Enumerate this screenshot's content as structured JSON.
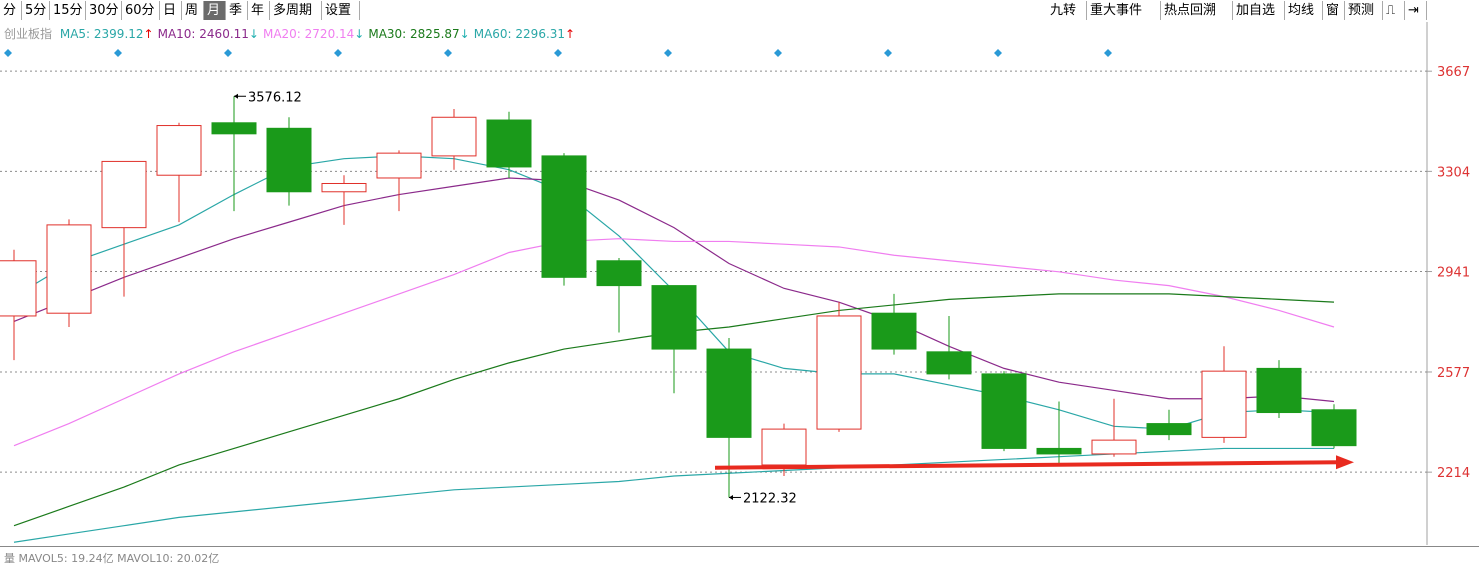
{
  "toolbar": {
    "left": [
      "分",
      "5分",
      "15分",
      "30分",
      "60分",
      "日",
      "周",
      "月",
      "季",
      "年",
      "多周期",
      "设置"
    ],
    "active": "月",
    "right": [
      "九转",
      "重大事件",
      "热点回溯",
      "加自选",
      "均线",
      "窗",
      "预测"
    ],
    "right_icons": [
      "restore-icon",
      "pin-right-icon"
    ]
  },
  "legend": {
    "name": "创业板指",
    "ma": [
      {
        "label": "MA5: 2399.12",
        "arrow": "↑",
        "color": "#2aa7a7",
        "arrow_color": "#e60000"
      },
      {
        "label": "MA10: 2460.11",
        "arrow": "↓",
        "color": "#8b2a8b",
        "arrow_color": "#22b0b0"
      },
      {
        "label": "MA20: 2720.14",
        "arrow": "↓",
        "color": "#f07ef0",
        "arrow_color": "#22b0b0"
      },
      {
        "label": "MA30: 2825.87",
        "arrow": "↓",
        "color": "#1b7a1b",
        "arrow_color": "#22b0b0"
      },
      {
        "label": "MA60: 2296.31",
        "arrow": "↑",
        "color": "#2aa7a7",
        "arrow_color": "#e60000"
      }
    ]
  },
  "vol_legend": "量 MAVOL5: 19.24亿 MAVOL10: 20.02亿",
  "chart_data": {
    "type": "candlestick",
    "y_ticks": [
      3667,
      3304,
      2941,
      2577,
      2214
    ],
    "ylim": [
      1950,
      3780
    ],
    "grid": "horizontal dashed",
    "candles": [
      {
        "o": 2780,
        "c": 2980,
        "h": 3020,
        "l": 2620
      },
      {
        "o": 2790,
        "c": 3110,
        "h": 3130,
        "l": 2740
      },
      {
        "o": 3100,
        "c": 3340,
        "h": 3340,
        "l": 2850
      },
      {
        "o": 3290,
        "c": 3470,
        "h": 3480,
        "l": 3120
      },
      {
        "o": 3480,
        "c": 3440,
        "h": 3576,
        "l": 3160
      },
      {
        "o": 3460,
        "c": 3230,
        "h": 3500,
        "l": 3180
      },
      {
        "o": 3230,
        "c": 3260,
        "h": 3290,
        "l": 3110
      },
      {
        "o": 3280,
        "c": 3370,
        "h": 3380,
        "l": 3160
      },
      {
        "o": 3360,
        "c": 3500,
        "h": 3530,
        "l": 3310
      },
      {
        "o": 3490,
        "c": 3320,
        "h": 3520,
        "l": 3280
      },
      {
        "o": 3360,
        "c": 2920,
        "h": 3370,
        "l": 2890
      },
      {
        "o": 2980,
        "c": 2890,
        "h": 2990,
        "l": 2720
      },
      {
        "o": 2890,
        "c": 2660,
        "h": 2890,
        "l": 2500
      },
      {
        "o": 2660,
        "c": 2340,
        "h": 2700,
        "l": 2122.32
      },
      {
        "o": 2240,
        "c": 2370,
        "h": 2390,
        "l": 2200
      },
      {
        "o": 2370,
        "c": 2780,
        "h": 2830,
        "l": 2360
      },
      {
        "o": 2790,
        "c": 2660,
        "h": 2860,
        "l": 2640
      },
      {
        "o": 2650,
        "c": 2570,
        "h": 2780,
        "l": 2550
      },
      {
        "o": 2570,
        "c": 2300,
        "h": 2580,
        "l": 2290
      },
      {
        "o": 2300,
        "c": 2280,
        "h": 2470,
        "l": 2240
      },
      {
        "o": 2280,
        "c": 2330,
        "h": 2480,
        "l": 2270
      },
      {
        "o": 2390,
        "c": 2350,
        "h": 2440,
        "l": 2330
      },
      {
        "o": 2340,
        "c": 2580,
        "h": 2670,
        "l": 2320
      },
      {
        "o": 2590,
        "c": 2430,
        "h": 2620,
        "l": 2410
      },
      {
        "o": 2440,
        "c": 2310,
        "h": 2460,
        "l": 2300
      }
    ],
    "ma_lines": [
      {
        "name": "MA5",
        "color": "#2aa7a7",
        "start": 0,
        "values": [
          2850,
          2970,
          3040,
          3110,
          3220,
          3320,
          3350,
          3360,
          3350,
          3310,
          3230,
          3070,
          2870,
          2650,
          2590,
          2570,
          2570,
          2530,
          2490,
          2440,
          2380,
          2370,
          2430,
          2440,
          2430
        ]
      },
      {
        "name": "MA10",
        "color": "#8b2a8b",
        "start": 0,
        "values": [
          2760,
          2840,
          2920,
          2990,
          3060,
          3120,
          3180,
          3220,
          3250,
          3280,
          3270,
          3200,
          3100,
          2970,
          2880,
          2830,
          2760,
          2670,
          2590,
          2540,
          2510,
          2480,
          2480,
          2490,
          2470
        ]
      },
      {
        "name": "MA20",
        "color": "#f07ef0",
        "start": 0,
        "values": [
          2310,
          2390,
          2480,
          2570,
          2650,
          2720,
          2790,
          2860,
          2930,
          3010,
          3050,
          3060,
          3050,
          3050,
          3040,
          3030,
          3000,
          2980,
          2960,
          2940,
          2910,
          2890,
          2850,
          2800,
          2740
        ]
      },
      {
        "name": "MA30",
        "color": "#1b7a1b",
        "start": 0,
        "values": [
          2020,
          2090,
          2160,
          2240,
          2300,
          2360,
          2420,
          2480,
          2550,
          2610,
          2660,
          2690,
          2720,
          2740,
          2770,
          2800,
          2820,
          2840,
          2850,
          2860,
          2860,
          2860,
          2850,
          2840,
          2830
        ]
      },
      {
        "name": "MA60",
        "color": "#2aa7a7",
        "start": 0,
        "values": [
          1960,
          1990,
          2020,
          2050,
          2070,
          2090,
          2110,
          2130,
          2150,
          2160,
          2170,
          2180,
          2200,
          2210,
          2220,
          2230,
          2240,
          2250,
          2260,
          2270,
          2280,
          2290,
          2300,
          2300,
          2300
        ]
      }
    ],
    "annotations": [
      {
        "text": "3576.12",
        "candle": 4,
        "value": 3576.12,
        "at": "high"
      },
      {
        "text": "2122.32",
        "candle": 13,
        "value": 2122.32,
        "at": "low"
      }
    ],
    "trend_arrow": {
      "from_candle": 13,
      "from_value": 2230,
      "to_candle": 24,
      "to_value": 2250,
      "color": "#e82a1f"
    },
    "markers": {
      "color": "#2a9ad6",
      "candles": [
        0,
        2,
        4,
        6,
        8,
        10,
        12,
        14,
        16,
        18,
        20
      ]
    }
  }
}
